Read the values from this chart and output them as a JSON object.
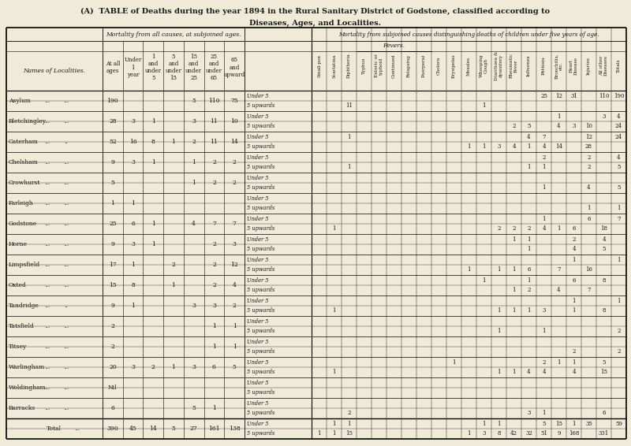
{
  "title_line1": "(A)  TABLE of Deaths during the year 1894 in the Rural Sanitary District of Godstone, classified according to",
  "title_line2": "Diseases, Ages, and Localities.",
  "bg_color": "#f0ead8",
  "text_color": "#1a1a1a",
  "header1": "Mortality from all causes, at subjoined ages.",
  "header2": "Mortality from subjoined causes distinguishing deaths of children under five years of age.",
  "fevers_label": "Fevers.",
  "age_labels": [
    "At all\nages",
    "Under\n1\nyear",
    "1\nand\nunder\n5",
    "5\nand\nunder\n15",
    "15\nand\nunder\n25",
    "25\nand\nunder\n65",
    "65\nand\nupward"
  ],
  "cause_labels": [
    "Small-pox",
    "Scarlatina",
    "Diphtheria",
    "Typhus",
    "Enteric or\ntyphoid",
    "Continued",
    "Relapsing",
    "Puerperal",
    "Cholera",
    "Erysipelas",
    "Measles",
    "Whooping\nCough",
    "Diarrhoea &\ndysentery",
    "Rheumatic\nFever",
    "Influenza",
    "Phthisis",
    "Bronchitis,\netc.",
    "Heart\nDisease",
    "Injuries",
    "All other\nDiseases",
    "Totals"
  ],
  "localities": [
    "Asylum",
    "Bletchingley",
    "Caterham",
    "Chelsham",
    "Crowhurst",
    "Farleigh",
    "Godstone",
    "Horne ...",
    "Limpsfield",
    "Oxted ...",
    "Tandridge",
    "Tatsfield",
    "Titsey ...",
    "Warlingham",
    "Woldingham",
    "Barracks"
  ],
  "loc_dots": {
    "Asylum": [
      "...",
      "..."
    ],
    "Bletchingley": [
      "...",
      "..."
    ],
    "Caterham": [
      "...",
      ".."
    ],
    "Chelsham": [
      "...",
      "..."
    ],
    "Crowhurst": [
      "...",
      "..."
    ],
    "Farleigh": [
      "...",
      "..."
    ],
    "Godstone": [
      "...",
      "..."
    ],
    "Horne ...": [
      "...",
      "..."
    ],
    "Limpsfield": [
      "...",
      "..."
    ],
    "Oxted ...": [
      "...",
      "..."
    ],
    "Tandridge": [
      "...",
      ".."
    ],
    "Tatsfield": [
      "...",
      "..."
    ],
    "Titsey ...": [
      "...",
      "..."
    ],
    "Warlingham": [
      "...",
      "..."
    ],
    "Woldingham": [
      "...",
      "..."
    ],
    "Barracks": [
      "...",
      "..."
    ]
  },
  "age_data": {
    "Asylum": [
      "190",
      "",
      "",
      "",
      "5",
      "110",
      "75"
    ],
    "Bletchingley": [
      "28",
      "3",
      "1",
      "",
      "3",
      "11",
      "10"
    ],
    "Caterham": [
      "52",
      "16",
      "8",
      "1",
      "2",
      "11",
      "14"
    ],
    "Chelsham": [
      "9",
      "3",
      "1",
      "",
      "1",
      "2",
      "2"
    ],
    "Crowhurst": [
      "5",
      "",
      "",
      "",
      "1",
      "2",
      "2"
    ],
    "Farleigh": [
      "1",
      "1",
      "",
      "",
      "",
      "",
      ""
    ],
    "Godstone": [
      "25",
      "6",
      "1",
      "",
      "4",
      "7",
      "7"
    ],
    "Horne ...": [
      "9",
      "3",
      "1",
      "",
      "",
      "2",
      "3"
    ],
    "Limpsfield": [
      "17",
      "1",
      "",
      "2",
      "",
      "2",
      "12"
    ],
    "Oxted ...": [
      "15",
      "8",
      "",
      "1",
      "",
      "2",
      "4"
    ],
    "Tandridge": [
      "9",
      "1",
      "",
      "",
      "3",
      "3",
      "2"
    ],
    "Tatsfield": [
      "2",
      "",
      "",
      "",
      "",
      "1",
      "1"
    ],
    "Titsey ...": [
      "2",
      "",
      "",
      "",
      "",
      "1",
      "1"
    ],
    "Warlingham": [
      "20",
      "3",
      "2",
      "1",
      "3",
      "6",
      "5"
    ],
    "Woldingham": [
      "Nil",
      "",
      "",
      "",
      "",
      "",
      ""
    ],
    "Barracks": [
      "6",
      "",
      "",
      "",
      "5",
      "1",
      ""
    ]
  },
  "total_ages": [
    "390",
    "45",
    "14",
    "5",
    "27",
    "161",
    "138"
  ],
  "rows": [
    {
      "loc": "Asylum",
      "sub": "Under 5",
      "data": [
        "",
        "",
        "",
        "",
        "",
        "",
        "",
        "",
        "",
        "",
        "",
        "",
        "",
        "",
        "",
        "25",
        "12",
        "31",
        "",
        "110",
        "190"
      ]
    },
    {
      "loc": "",
      "sub": "5 upwards",
      "data": [
        "",
        "",
        "11",
        "",
        "",
        "",
        "",
        "",
        "",
        "",
        "",
        "1",
        "",
        "",
        "",
        "",
        "",
        "",
        "",
        "",
        ""
      ]
    },
    {
      "loc": "Bletchingley",
      "sub": "Under 5",
      "data": [
        "",
        "",
        "",
        "",
        "",
        "",
        "",
        "",
        "",
        "",
        "",
        "",
        "",
        "",
        "",
        "",
        "1",
        "",
        "",
        "3",
        "4"
      ]
    },
    {
      "loc": "",
      "sub": "5 upwards",
      "data": [
        "",
        "",
        "",
        "",
        "",
        "",
        "",
        "",
        "",
        "",
        "",
        "",
        "",
        "2",
        "5",
        "",
        "4",
        "3",
        "10",
        "",
        "24"
      ]
    },
    {
      "loc": "Caterham",
      "sub": "Under 5",
      "data": [
        "",
        "",
        "1",
        "",
        "",
        "",
        "",
        "",
        "",
        "",
        "",
        "",
        "",
        "",
        "4",
        "7",
        "",
        "",
        "12",
        "",
        "24"
      ]
    },
    {
      "loc": "",
      "sub": "5 upwards",
      "data": [
        "",
        "",
        "",
        "",
        "",
        "",
        "",
        "",
        "",
        "",
        "1",
        "1",
        "3",
        "4",
        "1",
        "4",
        "14",
        "",
        "28",
        "",
        ""
      ]
    },
    {
      "loc": "Chelsham",
      "sub": "Under 5",
      "data": [
        "",
        "",
        "",
        "",
        "",
        "",
        "",
        "",
        "",
        "",
        "",
        "",
        "",
        "",
        "",
        "2",
        "",
        "",
        "2",
        "",
        "4"
      ]
    },
    {
      "loc": "",
      "sub": "5 upwards",
      "data": [
        "",
        "",
        "1",
        "",
        "",
        "",
        "",
        "",
        "",
        "",
        "",
        "",
        "",
        "",
        "1",
        "1",
        "",
        "",
        "2",
        "",
        "5"
      ]
    },
    {
      "loc": "Crowhurst",
      "sub": "Under 5",
      "data": [
        "",
        "",
        "",
        "",
        "",
        "",
        "",
        "",
        "",
        "",
        "",
        "",
        "",
        "",
        "",
        "",
        "",
        "",
        "",
        "",
        ""
      ]
    },
    {
      "loc": "",
      "sub": "5 upwards",
      "data": [
        "",
        "",
        "",
        "",
        "",
        "",
        "",
        "",
        "",
        "",
        "",
        "",
        "",
        "",
        "",
        "1",
        "",
        "",
        "4",
        "",
        "5"
      ]
    },
    {
      "loc": "Farleigh",
      "sub": "Under 5",
      "data": [
        "",
        "",
        "",
        "",
        "",
        "",
        "",
        "",
        "",
        "",
        "",
        "",
        "",
        "",
        "",
        "",
        "",
        "",
        "",
        "",
        ""
      ]
    },
    {
      "loc": "",
      "sub": "5 upwards",
      "data": [
        "",
        "",
        "",
        "",
        "",
        "",
        "",
        "",
        "",
        "",
        "",
        "",
        "",
        "",
        "",
        "",
        "",
        "",
        "1",
        "",
        "1"
      ]
    },
    {
      "loc": "Godstone",
      "sub": "Under 5",
      "data": [
        "",
        "",
        "",
        "",
        "",
        "",
        "",
        "",
        "",
        "",
        "",
        "",
        "",
        "",
        "",
        "1",
        "",
        "",
        "6",
        "",
        "7"
      ]
    },
    {
      "loc": "",
      "sub": "5 upwards",
      "data": [
        "",
        "1",
        "",
        "",
        "",
        "",
        "",
        "",
        "",
        "",
        "",
        "",
        "2",
        "2",
        "2",
        "4",
        "1",
        "6",
        "",
        "18",
        ""
      ]
    },
    {
      "loc": "Horne ...",
      "sub": "Under 5",
      "data": [
        "",
        "",
        "",
        "",
        "",
        "",
        "",
        "",
        "",
        "",
        "",
        "",
        "",
        "1",
        "1",
        "",
        "",
        "2",
        "",
        "4",
        ""
      ]
    },
    {
      "loc": "",
      "sub": "5 upwards",
      "data": [
        "",
        "",
        "",
        "",
        "",
        "",
        "",
        "",
        "",
        "",
        "",
        "",
        "",
        "",
        "1",
        "",
        "",
        "4",
        "",
        "5",
        ""
      ]
    },
    {
      "loc": "Limpsfield",
      "sub": "Under 5",
      "data": [
        "",
        "",
        "",
        "",
        "",
        "",
        "",
        "",
        "",
        "",
        "",
        "",
        "",
        "",
        "",
        "",
        "",
        "1",
        "",
        "",
        "1"
      ]
    },
    {
      "loc": "",
      "sub": "5 upwards",
      "data": [
        "",
        "",
        "",
        "",
        "",
        "",
        "",
        "",
        "",
        "",
        "1",
        "",
        "1",
        "1",
        "6",
        "",
        "7",
        "",
        "16",
        "",
        ""
      ]
    },
    {
      "loc": "Oxted ...",
      "sub": "Under 5",
      "data": [
        "",
        "",
        "",
        "",
        "",
        "",
        "",
        "",
        "",
        "",
        "",
        "1",
        "",
        "",
        "1",
        "",
        "",
        "6",
        "",
        "8",
        ""
      ]
    },
    {
      "loc": "",
      "sub": "5 upwards",
      "data": [
        "",
        "",
        "",
        "",
        "",
        "",
        "",
        "",
        "",
        "",
        "",
        "",
        "",
        "1",
        "2",
        "",
        "4",
        "",
        "7",
        "",
        ""
      ]
    },
    {
      "loc": "Tandridge",
      "sub": "Under 5",
      "data": [
        "",
        "",
        "",
        "",
        "",
        "",
        "",
        "",
        "",
        "",
        "",
        "",
        "",
        "",
        "",
        "",
        "",
        "1",
        "",
        "",
        "1"
      ]
    },
    {
      "loc": "",
      "sub": "5 upwards",
      "data": [
        "",
        "1",
        "",
        "",
        "",
        "",
        "",
        "",
        "",
        "",
        "",
        "",
        "1",
        "1",
        "1",
        "3",
        "",
        "1",
        "",
        "8",
        ""
      ]
    },
    {
      "loc": "Tatsfield",
      "sub": "Under 5",
      "data": [
        "",
        "",
        "",
        "",
        "",
        "",
        "",
        "",
        "",
        "",
        "",
        "",
        "",
        "",
        "",
        "",
        "",
        "",
        "",
        "",
        ""
      ]
    },
    {
      "loc": "",
      "sub": "5 upwards",
      "data": [
        "",
        "",
        "",
        "",
        "",
        "",
        "",
        "",
        "",
        "",
        "",
        "",
        "1",
        "",
        "",
        "1",
        "",
        "",
        "",
        "",
        "2"
      ]
    },
    {
      "loc": "Titsey ...",
      "sub": "Under 5",
      "data": [
        "",
        "",
        "",
        "",
        "",
        "",
        "",
        "",
        "",
        "",
        "",
        "",
        "",
        "",
        "",
        "",
        "",
        "",
        "",
        "",
        ""
      ]
    },
    {
      "loc": "",
      "sub": "5 upwards",
      "data": [
        "",
        "",
        "",
        "",
        "",
        "",
        "",
        "",
        "",
        "",
        "",
        "",
        "",
        "",
        "",
        "",
        "",
        "2",
        "",
        "",
        "2"
      ]
    },
    {
      "loc": "Warlingham",
      "sub": "Under 5",
      "data": [
        "",
        "",
        "",
        "",
        "",
        "",
        "",
        "",
        "",
        "1",
        "",
        "",
        "",
        "",
        "",
        "2",
        "1",
        "1",
        "",
        "5",
        ""
      ]
    },
    {
      "loc": "",
      "sub": "5 upwards",
      "data": [
        "",
        "1",
        "",
        "",
        "",
        "",
        "",
        "",
        "",
        "",
        "",
        "",
        "1",
        "1",
        "4",
        "4",
        "",
        "4",
        "",
        "15",
        ""
      ]
    },
    {
      "loc": "Woldingham",
      "sub": "Under 5",
      "data": [
        "",
        "",
        "",
        "",
        "",
        "",
        "",
        "",
        "",
        "",
        "",
        "",
        "",
        "",
        "",
        "",
        "",
        "",
        "",
        "",
        ""
      ]
    },
    {
      "loc": "",
      "sub": "5 upwards",
      "data": [
        "",
        "",
        "",
        "",
        "",
        "",
        "",
        "",
        "",
        "",
        "",
        "",
        "",
        "",
        "",
        "",
        "",
        "",
        "",
        "",
        ""
      ]
    },
    {
      "loc": "Barracks",
      "sub": "Under 5",
      "data": [
        "",
        "",
        "",
        "",
        "",
        "",
        "",
        "",
        "",
        "",
        "",
        "",
        "",
        "",
        "",
        "",
        "",
        "",
        "",
        "",
        ""
      ]
    },
    {
      "loc": "",
      "sub": "5 upwards",
      "data": [
        "",
        "",
        "2",
        "",
        "",
        "",
        "",
        "",
        "",
        "",
        "",
        "",
        "",
        "",
        "3",
        "1",
        "",
        "",
        "",
        "6",
        ""
      ]
    },
    {
      "loc": "Total",
      "sub": "Under 5",
      "data": [
        "",
        "1",
        "1",
        "",
        "",
        "",
        "",
        "",
        "",
        "",
        "",
        "1",
        "1",
        "",
        "",
        "5",
        "15",
        "1",
        "35",
        "",
        "59"
      ]
    },
    {
      "loc": "",
      "sub": "5 upwards",
      "data": [
        "1",
        "1",
        "15",
        "",
        "",
        "",
        "",
        "",
        "",
        "",
        "1",
        "3",
        "8",
        "42",
        "32",
        "51",
        "9",
        "168",
        "",
        "331",
        ""
      ]
    }
  ]
}
